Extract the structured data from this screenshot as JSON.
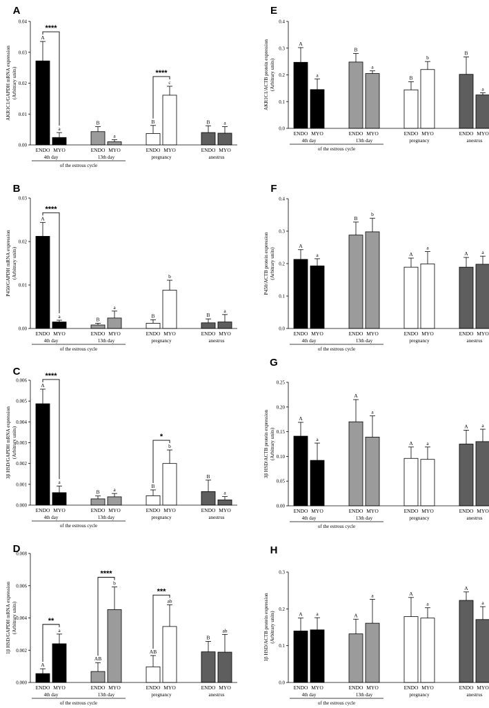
{
  "figure": {
    "group_labels": [
      "4th day",
      "13th day",
      "pregnancy",
      "anestrus"
    ],
    "bar_labels": [
      "ENDO",
      "MYO"
    ],
    "cycle_label": "of the estrous cycle",
    "colors": [
      "#000000",
      "#9b9b9b",
      "#ffffff",
      "#5e5e5e"
    ]
  },
  "chart_data": [
    {
      "type": "bar",
      "panel": "A",
      "ylabel": [
        "AKR1C1/GAPDH mRNA expression",
        "(Arbitrary units)"
      ],
      "ylim": [
        0,
        0.04
      ],
      "ticks": [
        0,
        0.01,
        0.02,
        0.03,
        0.04
      ],
      "tick_labels": [
        "0.00",
        "0.01",
        "0.02",
        "0.03",
        "0.04"
      ],
      "categories": [
        "4th day ENDO",
        "4th day MYO",
        "13th day ENDO",
        "13th day MYO",
        "pregnancy ENDO",
        "pregnancy MYO",
        "anestrus ENDO",
        "anestrus MYO"
      ],
      "values": [
        0.0272,
        0.0024,
        0.0043,
        0.001,
        0.0037,
        0.0161,
        0.004,
        0.0038
      ],
      "errors": [
        0.0063,
        0.0016,
        0.0016,
        0.0007,
        0.0026,
        0.0029,
        0.0022,
        0.0021
      ],
      "letters": [
        "A",
        "a",
        "B",
        "a",
        "B",
        "c",
        "B",
        "a"
      ],
      "brackets": [
        {
          "from": 0,
          "to": 1,
          "label": "****"
        },
        {
          "from": 4,
          "to": 5,
          "label": "****"
        }
      ]
    },
    {
      "type": "bar",
      "panel": "B",
      "ylabel": [
        "P450/GAPDH mRNA expression",
        "(Arbitrary units)"
      ],
      "ylim": [
        0,
        0.03
      ],
      "ticks": [
        0,
        0.01,
        0.02,
        0.03
      ],
      "tick_labels": [
        "0.00",
        "0.01",
        "0.02",
        "0.03"
      ],
      "categories": [
        "4th day ENDO",
        "4th day MYO",
        "13th day ENDO",
        "13th day MYO",
        "pregnancy ENDO",
        "pregnancy MYO",
        "anestrus ENDO",
        "anestrus MYO"
      ],
      "values": [
        0.0212,
        0.0015,
        0.0008,
        0.0024,
        0.0012,
        0.0088,
        0.0013,
        0.0015
      ],
      "errors": [
        0.0032,
        0.0004,
        0.0004,
        0.0016,
        0.0008,
        0.0023,
        0.0009,
        0.0017
      ],
      "letters": [
        "A",
        "a",
        "B",
        "a",
        "B",
        "b",
        "B",
        "a"
      ],
      "brackets": [
        {
          "from": 0,
          "to": 1,
          "label": "****"
        }
      ]
    },
    {
      "type": "bar",
      "panel": "C",
      "ylabel": [
        "3β HSD/GAPDH mRNA expression",
        "(Arbitrary units)"
      ],
      "ylim": [
        0,
        0.006
      ],
      "ticks": [
        0,
        0.001,
        0.002,
        0.003,
        0.004,
        0.005,
        0.006
      ],
      "tick_labels": [
        "0.000",
        "0.001",
        "0.002",
        "0.003",
        "0.004",
        "0.005",
        "0.006"
      ],
      "categories": [
        "4th day ENDO",
        "4th day MYO",
        "13th day ENDO",
        "13th day MYO",
        "pregnancy ENDO",
        "pregnancy MYO",
        "anestrus ENDO",
        "anestrus MYO"
      ],
      "values": [
        0.00487,
        0.0006,
        0.0003,
        0.0004,
        0.00045,
        0.002,
        0.00065,
        0.00025
      ],
      "errors": [
        0.0007,
        0.00032,
        0.00014,
        0.00016,
        0.00028,
        0.00065,
        0.00055,
        0.00016
      ],
      "letters": [
        "A",
        "a",
        "B",
        "a",
        "B",
        "b",
        "B",
        "a"
      ],
      "brackets": [
        {
          "from": 0,
          "to": 1,
          "label": "****"
        },
        {
          "from": 4,
          "to": 5,
          "label": "*"
        }
      ]
    },
    {
      "type": "bar",
      "panel": "D",
      "ylabel": [
        "1β HSD/GAPDH mRNA expression",
        "(Arbitrary units)"
      ],
      "ylim": [
        0,
        0.008
      ],
      "ticks": [
        0,
        0.002,
        0.004,
        0.006,
        0.008
      ],
      "tick_labels": [
        "0.000",
        "0.002",
        "0.004",
        "0.006",
        "0.008"
      ],
      "categories": [
        "4th day ENDO",
        "4th day MYO",
        "13th day ENDO",
        "13th day MYO",
        "pregnancy ENDO",
        "pregnancy MYO",
        "anestrus ENDO",
        "anestrus MYO"
      ],
      "values": [
        0.00055,
        0.0024,
        0.00068,
        0.00452,
        0.00097,
        0.00347,
        0.0019,
        0.00188
      ],
      "errors": [
        0.0003,
        0.0006,
        0.00055,
        0.0014,
        0.0007,
        0.00135,
        0.00065,
        0.0011
      ],
      "letters": [
        "A",
        "a",
        "AB",
        "b",
        "AB",
        "ab",
        "B",
        "ab"
      ],
      "brackets": [
        {
          "from": 0,
          "to": 1,
          "label": "**"
        },
        {
          "from": 2,
          "to": 3,
          "label": "****"
        },
        {
          "from": 4,
          "to": 5,
          "label": "***"
        }
      ]
    },
    {
      "type": "bar",
      "panel": "E",
      "ylabel": [
        "AKR1C1/ACTB protein expression",
        "(Arbitrary units)"
      ],
      "ylim": [
        0,
        0.4
      ],
      "ticks": [
        0,
        0.1,
        0.2,
        0.3,
        0.4
      ],
      "tick_labels": [
        "0.0",
        "0.1",
        "0.2",
        "0.3",
        "0.4"
      ],
      "categories": [
        "4th day ENDO",
        "4th day MYO",
        "13th day ENDO",
        "13th day MYO",
        "pregnancy ENDO",
        "pregnancy MYO",
        "anestrus ENDO",
        "anestrus MYO"
      ],
      "values": [
        0.247,
        0.145,
        0.248,
        0.205,
        0.144,
        0.22,
        0.202,
        0.125
      ],
      "errors": [
        0.055,
        0.04,
        0.032,
        0.01,
        0.03,
        0.03,
        0.065,
        0.008
      ],
      "letters": [
        "A",
        "a",
        "B",
        "a",
        "B",
        "b",
        "B",
        "a"
      ],
      "brackets": []
    },
    {
      "type": "bar",
      "panel": "F",
      "ylabel": [
        "P450/ACTB protein expression",
        "(Arbitrary units)"
      ],
      "ylim": [
        0,
        0.4
      ],
      "ticks": [
        0,
        0.1,
        0.2,
        0.3,
        0.4
      ],
      "tick_labels": [
        "0.0",
        "0.1",
        "0.2",
        "0.3",
        "0.4"
      ],
      "categories": [
        "4th day ENDO",
        "4th day MYO",
        "13th day ENDO",
        "13th day MYO",
        "pregnancy ENDO",
        "pregnancy MYO",
        "anestrus ENDO",
        "anestrus MYO"
      ],
      "values": [
        0.213,
        0.193,
        0.288,
        0.298,
        0.189,
        0.199,
        0.189,
        0.198
      ],
      "errors": [
        0.03,
        0.022,
        0.04,
        0.042,
        0.028,
        0.038,
        0.03,
        0.025
      ],
      "letters": [
        "A",
        "a",
        "B",
        "b",
        "A",
        "a",
        "A",
        "a"
      ],
      "brackets": []
    },
    {
      "type": "bar",
      "panel": "G",
      "ylabel": [
        "3β HSD/ACTB protein expression",
        "(Arbitrary units)"
      ],
      "ylim": [
        0,
        0.25
      ],
      "ticks": [
        0,
        0.05,
        0.1,
        0.15,
        0.2,
        0.25
      ],
      "tick_labels": [
        "0.00",
        "0.05",
        "0.10",
        "0.15",
        "0.20",
        "0.25"
      ],
      "categories": [
        "4th day ENDO",
        "4th day MYO",
        "13th day ENDO",
        "13th day MYO",
        "pregnancy ENDO",
        "pregnancy MYO",
        "anestrus ENDO",
        "anestrus MYO"
      ],
      "values": [
        0.141,
        0.092,
        0.17,
        0.139,
        0.096,
        0.094,
        0.125,
        0.13
      ],
      "errors": [
        0.028,
        0.035,
        0.045,
        0.043,
        0.023,
        0.025,
        0.028,
        0.025
      ],
      "letters": [
        "A",
        "a",
        "A",
        "a",
        "A",
        "a",
        "A",
        "a"
      ],
      "brackets": []
    },
    {
      "type": "bar",
      "panel": "H",
      "ylabel": [
        "1β HSD/ACTB protein expression",
        "(Arbitrary units)"
      ],
      "ylim": [
        0,
        0.3
      ],
      "ticks": [
        0,
        0.1,
        0.2,
        0.3
      ],
      "tick_labels": [
        "0.0",
        "0.1",
        "0.2",
        "0.3"
      ],
      "categories": [
        "4th day ENDO",
        "4th day MYO",
        "13th day ENDO",
        "13th day MYO",
        "pregnancy ENDO",
        "pregnancy MYO",
        "anestrus ENDO",
        "anestrus MYO"
      ],
      "values": [
        0.14,
        0.143,
        0.132,
        0.161,
        0.179,
        0.175,
        0.223,
        0.171
      ],
      "errors": [
        0.035,
        0.033,
        0.04,
        0.065,
        0.052,
        0.028,
        0.023,
        0.035
      ],
      "letters": [
        "A",
        "a",
        "A",
        "a",
        "A",
        "a",
        "A",
        "a"
      ],
      "brackets": []
    }
  ]
}
